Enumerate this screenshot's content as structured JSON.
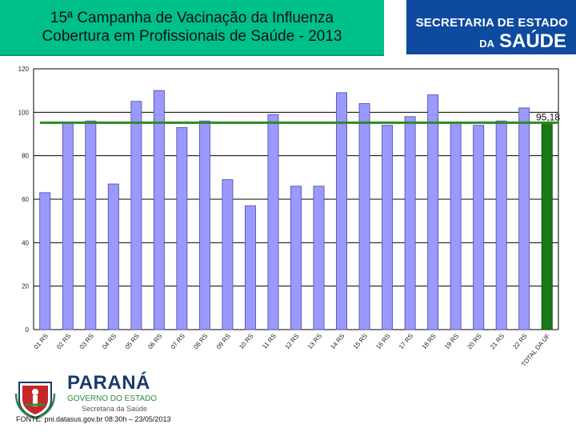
{
  "header": {
    "title_line1": "15ª Campanha de Vacinação da Influenza",
    "title_line2": "Cobertura em Profissionais de Saúde - 2013"
  },
  "brand": {
    "line1": "SECRETARIA DE ESTADO",
    "line2_prefix": "DA",
    "line2_main": "SAÚDE",
    "color": "#0d4aa0"
  },
  "footer": {
    "logo_icon": "parana-coat-of-arms-icon",
    "state": "PARANÁ",
    "government": "GOVERNO DO ESTADO",
    "department": "Secretaria da Saúde",
    "source": "FONTE: pni.datasus.gov.br 08:30h – 23/05/2013"
  },
  "chart_data": {
    "type": "bar",
    "categories": [
      "01 RS",
      "02 RS",
      "03 RS",
      "04 RS",
      "05 RS",
      "06 RS",
      "07 RS",
      "08 RS",
      "09 RS",
      "10 RS",
      "11 RS",
      "12 RS",
      "13 RS",
      "14 RS",
      "15 RS",
      "16 RS",
      "17 RS",
      "18 RS",
      "19 RS",
      "20 RS",
      "21 RS",
      "22 RS",
      "TOTAL DA UF"
    ],
    "values": [
      63,
      95,
      96,
      67,
      105,
      110,
      93,
      96,
      69,
      57,
      99,
      66,
      66,
      109,
      104,
      94,
      98,
      108,
      95,
      94,
      96,
      102,
      95.18
    ],
    "highlight_index": 22,
    "reference_line": {
      "value": 95.18,
      "label": "95,18"
    },
    "ylim": [
      0,
      120
    ],
    "yticks": [
      0,
      20,
      40,
      60,
      80,
      100,
      120
    ],
    "title": "",
    "xlabel": "",
    "ylabel": "",
    "grid": true,
    "colors": {
      "bar": "#9999ff",
      "highlight": "#1a7a1a",
      "reference": "#2e8b22",
      "grid": "#000000"
    }
  }
}
